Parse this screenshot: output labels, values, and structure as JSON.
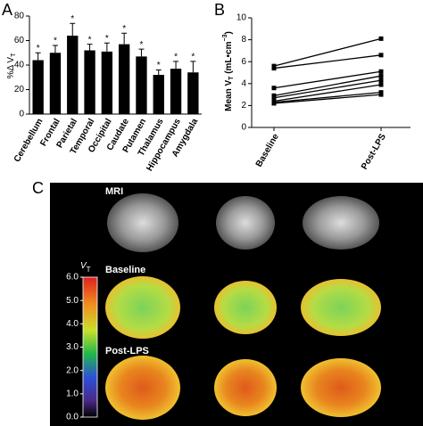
{
  "panel_letters": [
    "A",
    "B",
    "C"
  ],
  "chart_data": [
    {
      "type": "bar",
      "ylabel": {
        "text": "%Δ V",
        "sub": "T"
      },
      "categories": [
        "Cerebellum",
        "Frontal",
        "Parietal",
        "Temporal",
        "Occipital",
        "Caudate",
        "Putamen",
        "Thalamus",
        "Hippocampus",
        "Amygdala"
      ],
      "values": [
        44,
        50,
        64,
        52,
        51,
        57,
        47,
        32,
        37,
        34
      ],
      "errors": [
        6,
        6,
        10,
        5,
        7,
        9,
        6,
        4,
        6,
        9
      ],
      "markers": [
        "*",
        "*",
        "*",
        "*",
        "*",
        "*",
        "*",
        "*",
        "*",
        "*"
      ],
      "color": "#000000",
      "ylim": [
        0,
        80
      ],
      "yticks": [
        0,
        20,
        40,
        60,
        80
      ]
    },
    {
      "type": "line",
      "ylabel": {
        "text": "Mean V",
        "sub": "T",
        "unit": " (mL•cm",
        "sup": "−3",
        "close": ")"
      },
      "categories": [
        "Baseline",
        "Post-LPS"
      ],
      "series": [
        {
          "color": "#000000",
          "values": [
            5.6,
            8.1
          ]
        },
        {
          "color": "#000000",
          "values": [
            5.4,
            6.6
          ]
        },
        {
          "color": "#000000",
          "values": [
            3.6,
            5.1
          ]
        },
        {
          "color": "#000000",
          "values": [
            2.9,
            4.7
          ]
        },
        {
          "color": "#000000",
          "values": [
            2.7,
            4.3
          ]
        },
        {
          "color": "#000000",
          "values": [
            2.4,
            3.9
          ]
        },
        {
          "color": "#000000",
          "values": [
            2.3,
            3.2
          ]
        },
        {
          "color": "#000000",
          "values": [
            2.2,
            3.0
          ]
        }
      ],
      "ylim": [
        0,
        10
      ],
      "yticks": [
        0,
        2,
        4,
        6,
        8,
        10
      ]
    }
  ],
  "panel_c": {
    "row_labels": [
      "MRI",
      "Baseline",
      "Post-LPS"
    ],
    "colorbar": {
      "label": "V",
      "sub": "T",
      "lim": [
        0,
        6
      ],
      "ticks": [
        {
          "value": 0,
          "label": "0.0"
        },
        {
          "value": 1,
          "label": "1.0"
        },
        {
          "value": 2,
          "label": "2.0"
        },
        {
          "value": 3,
          "label": "3.0"
        },
        {
          "value": 4,
          "label": "4.0"
        },
        {
          "value": 5,
          "label": "5.0"
        },
        {
          "value": 6,
          "label": "6.0"
        }
      ]
    }
  }
}
